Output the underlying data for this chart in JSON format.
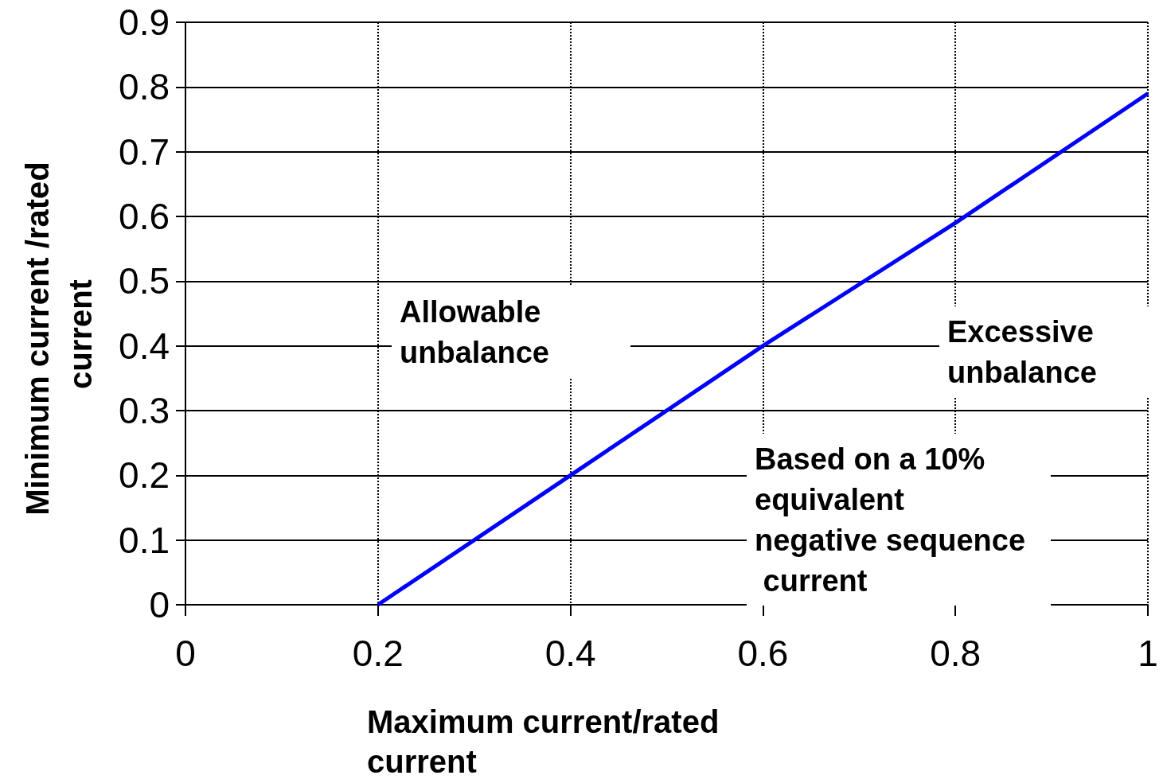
{
  "chart_data": {
    "type": "line",
    "xlabel": "Maximum current/rated current",
    "ylabel": "Minimum current /rated current",
    "x": [
      0.2,
      0.4,
      0.6,
      0.8,
      1
    ],
    "series": [
      {
        "color": "#0000ff",
        "values": [
          0,
          0.2,
          0.4,
          0.59,
          0.79
        ]
      }
    ],
    "xlim": [
      0,
      1
    ],
    "xticks": [
      0,
      0.2,
      0.4,
      0.6,
      0.8,
      1
    ],
    "ylim": [
      0,
      0.9
    ],
    "yticks": [
      0,
      0.1,
      0.2,
      0.3,
      0.4,
      0.5,
      0.6,
      0.7,
      0.8,
      0.9
    ],
    "grid": true,
    "marker": "none",
    "line_style": "solid",
    "annotations": [
      "Allowable unbalance",
      "Excessive unbalance",
      "Based on a 10% equivalent negative sequence current"
    ]
  }
}
